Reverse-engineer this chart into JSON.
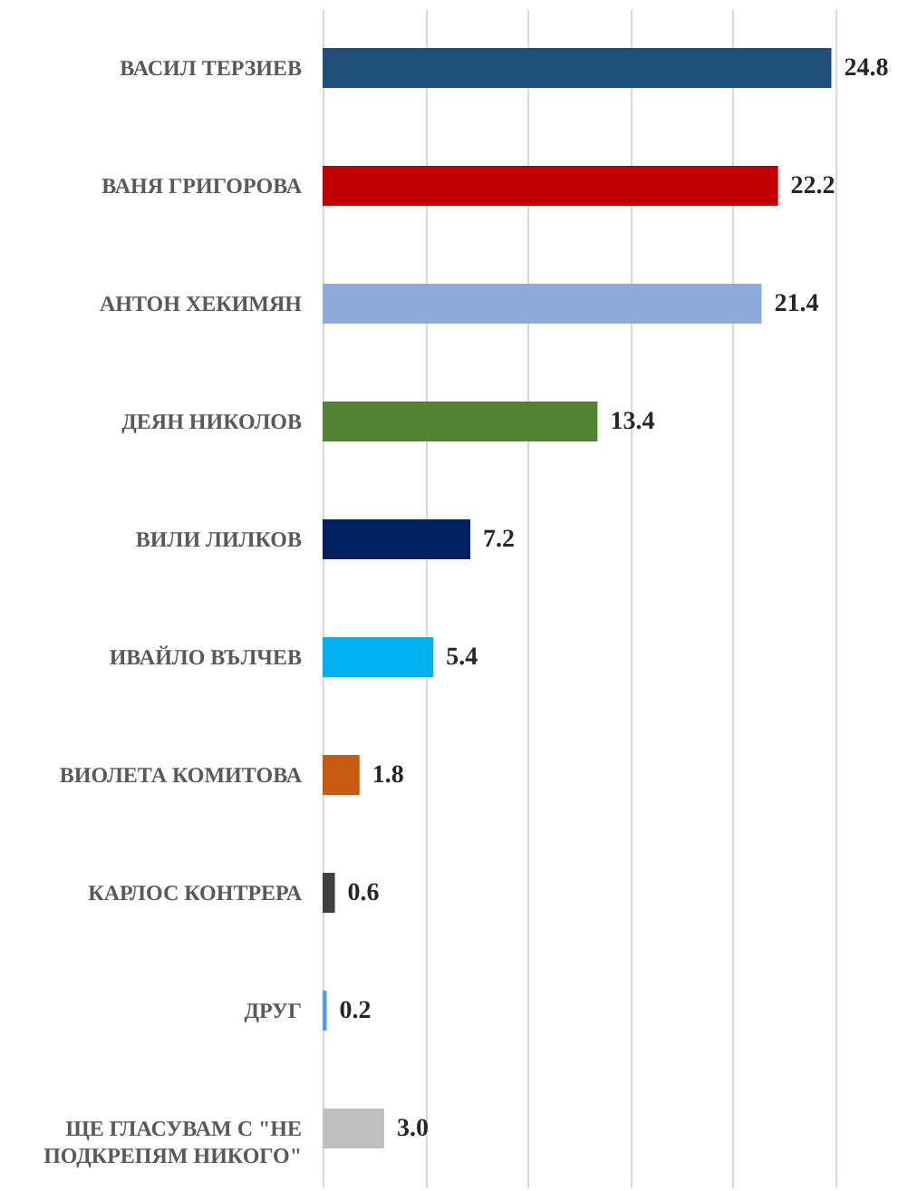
{
  "chart_data": {
    "type": "bar",
    "orientation": "horizontal",
    "categories": [
      "ВАСИЛ ТЕРЗИЕВ",
      "ВАНЯ ГРИГОРОВА",
      "АНТОН ХЕКИМЯН",
      "ДЕЯН НИКОЛОВ",
      "ВИЛИ ЛИЛКОВ",
      "ИВАЙЛО ВЪЛЧЕВ",
      "ВИОЛЕТА КОМИТОВА",
      "КАРЛОС КОНТРЕРА",
      "ДРУГ",
      "ЩЕ ГЛАСУВАМ  С \"НЕ ПОДКРЕПЯМ НИКОГО\""
    ],
    "values": [
      24.8,
      22.2,
      21.4,
      13.4,
      7.2,
      5.4,
      1.8,
      0.6,
      0.2,
      3.0
    ],
    "value_labels": [
      "24.8",
      "22.2",
      "21.4",
      "13.4",
      "7.2",
      "5.4",
      "1.8",
      "0.6",
      "0.2",
      "3.0"
    ],
    "colors": [
      "#1f4e79",
      "#c00000",
      "#8eaadb",
      "#548235",
      "#002060",
      "#00b0f0",
      "#c55a11",
      "#404040",
      "#5b9bd5",
      "#bfbfbf"
    ],
    "xlim": [
      0,
      25
    ],
    "xticks": [
      {
        "value": 0,
        "label": null
      },
      {
        "value": 5,
        "label": null
      },
      {
        "value": 10,
        "label": null
      },
      {
        "value": 15,
        "label": null
      },
      {
        "value": 20,
        "label": null
      },
      {
        "value": 25,
        "label": null
      }
    ],
    "grid": "x",
    "tick_labels": "y"
  }
}
